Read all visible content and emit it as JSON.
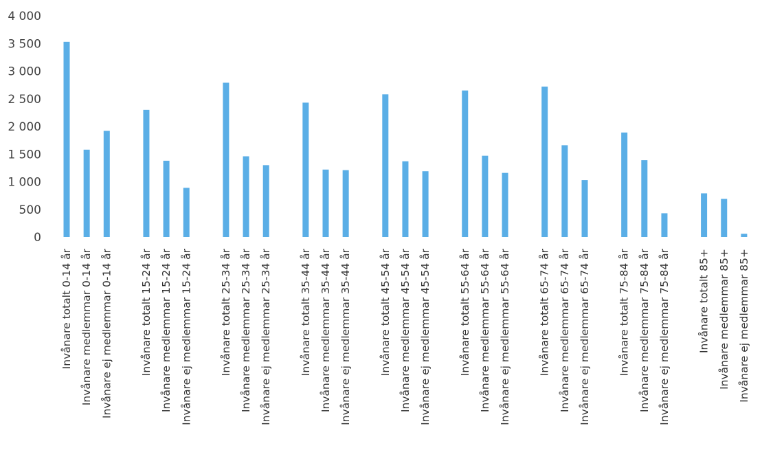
{
  "chart_data": {
    "type": "bar",
    "title": "",
    "xlabel": "",
    "ylabel": "",
    "ylim": [
      0,
      4000
    ],
    "yticks": [
      0,
      500,
      1000,
      1500,
      2000,
      2500,
      3000,
      3500,
      4000
    ],
    "ytick_labels": [
      "0",
      "500",
      "1 000",
      "1 500",
      "2 000",
      "2 500",
      "3 000",
      "3 500",
      "4 000"
    ],
    "grid": false,
    "legend": "none",
    "bar_color": "#5aaee6",
    "categories": [
      "Invånare totalt 0-14 år",
      "Invånare medlemmar 0-14 år",
      "Invånare ej medlemmar 0-14 år",
      "Invånare totalt 15-24 år",
      "Invånare medlemmar 15-24 år",
      "Invånare ej medlemmar 15-24 år",
      "Invånare totalt 25-34 år",
      "Invånare medlemmar 25-34 år",
      "Invånare ej medlemmar 25-34 år",
      "Invånare totalt 35-44 år",
      "Invånare medlemmar 35-44 år",
      "Invånare ej medlemmar 35-44 år",
      "Invånare totalt 45-54 år",
      "Invånare medlemmar 45-54 år",
      "Invånare ej medlemmar 45-54 år",
      "Invånare totalt 55-64 år",
      "Invånare medlemmar 55-64 år",
      "Invånare ej medlemmar 55-64 år",
      "Invånare totalt 65-74 år",
      "Invånare medlemmar 65-74 år",
      "Invånare ej medlemmar 65-74 år",
      "Invånare totalt 75-84 år",
      "Invånare medlemmar 75-84 år",
      "Invånare ej medlemmar 75-84 år",
      "Invånare totalt 85+",
      "Invånare medlemmar 85+",
      "Invånare ej medlemmar 85+"
    ],
    "values": [
      3530,
      1580,
      1920,
      2300,
      1380,
      890,
      2790,
      1460,
      1300,
      2430,
      1220,
      1210,
      2580,
      1370,
      1190,
      2650,
      1470,
      1160,
      2720,
      1660,
      1030,
      1890,
      1390,
      430,
      790,
      690,
      60
    ]
  }
}
